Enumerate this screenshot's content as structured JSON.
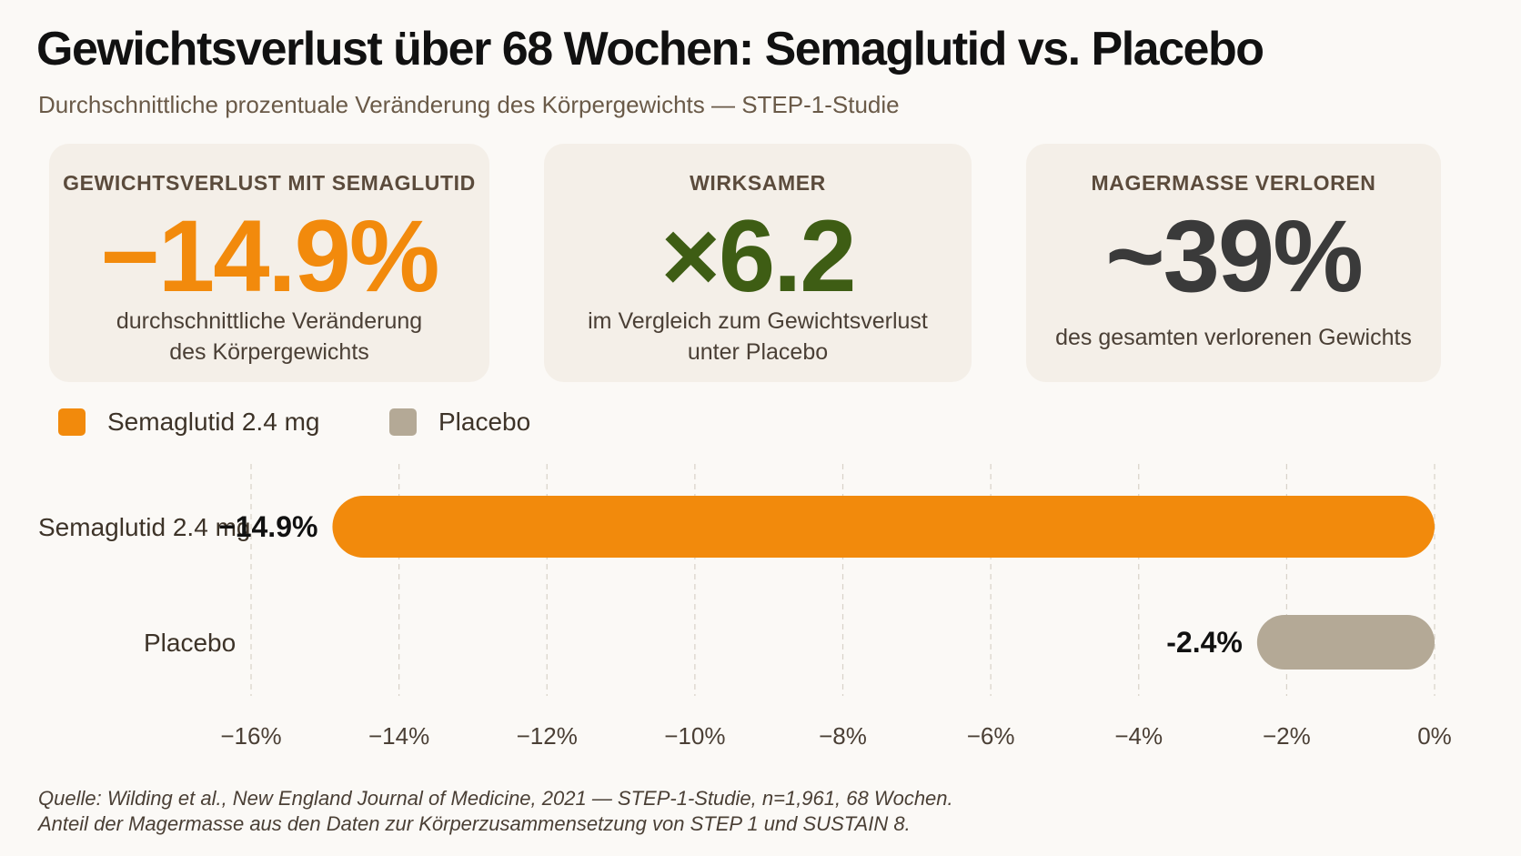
{
  "header": {
    "title": "Gewichtsverlust über 68 Wochen: Semaglutid vs. Placebo",
    "subtitle": "Durchschnittliche prozentuale Veränderung des Körpergewichts — STEP-1-Studie"
  },
  "cards": [
    {
      "label": "GEWICHTSVERLUST MIT SEMAGLUTID",
      "value": "−14.9%",
      "desc_line1": "durchschnittliche Veränderung",
      "desc_line2": "des Körpergewichts"
    },
    {
      "label": "WIRKSAMER",
      "value": "×6.2",
      "desc_line1": "im Vergleich zum Gewichtsverlust",
      "desc_line2": "unter Placebo"
    },
    {
      "label": "MAGERMASSE VERLOREN",
      "value": "~39%",
      "desc_line1": "des gesamten verlorenen Gewichts"
    }
  ],
  "colors": {
    "semaglutide": "#f28a0c",
    "placebo": "#b4a996",
    "effectiveness": "#3e5d14"
  },
  "chart_data": {
    "type": "bar",
    "orientation": "horizontal",
    "categories": [
      "Semaglutid 2.4 mg",
      "Placebo"
    ],
    "values": [
      -14.9,
      -2.4
    ],
    "value_labels": [
      "−14.9%",
      "-2.4%"
    ],
    "legend": [
      {
        "name": "Semaglutid 2.4 mg",
        "color": "#f28a0c"
      },
      {
        "name": "Placebo",
        "color": "#b4a996"
      }
    ],
    "legend_position": "top-left",
    "xlim": [
      -16,
      0
    ],
    "xticks": [
      -16,
      -14,
      -12,
      -10,
      -8,
      -6,
      -4,
      -2,
      0
    ],
    "xtick_labels": [
      "−16%",
      "−14%",
      "−12%",
      "−10%",
      "−8%",
      "−6%",
      "−4%",
      "−2%",
      "0%"
    ],
    "grid": "vertical dashed"
  },
  "footer": {
    "source_line1": "Quelle: Wilding et al., New England Journal of Medicine, 2021 — STEP-1-Studie, n=1,961, 68 Wochen.",
    "source_line2": "Anteil der Magermasse aus den Daten zur Körperzusammensetzung von STEP 1 und SUSTAIN 8."
  }
}
